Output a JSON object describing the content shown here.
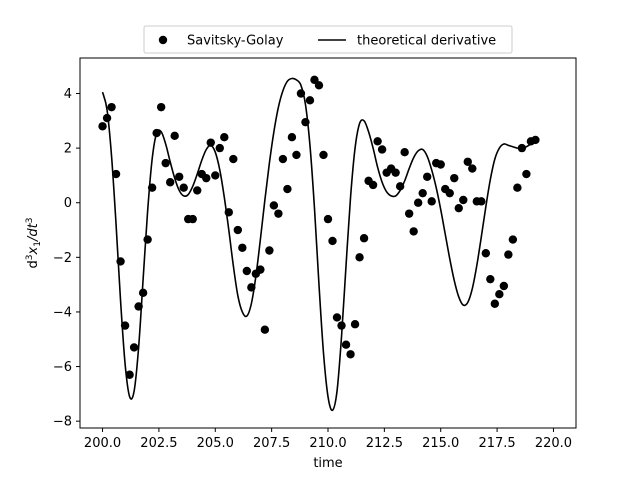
{
  "chart_data": {
    "type": "scatter",
    "title": "",
    "xlabel": "time",
    "ylabel_parts": {
      "base": "d",
      "sup1": "3",
      "mid": "x",
      "sub": "1",
      "slash": "/dt",
      "sup2": "3"
    },
    "xlim": [
      199.0,
      221.0
    ],
    "ylim": [
      -8.25,
      5.3
    ],
    "xticks": [
      200.0,
      202.5,
      205.0,
      207.5,
      210.0,
      212.5,
      215.0,
      217.5,
      220.0
    ],
    "xtick_labels": [
      "200.0",
      "202.5",
      "205.0",
      "207.5",
      "210.0",
      "212.5",
      "215.0",
      "217.5",
      "220.0"
    ],
    "yticks": [
      -8,
      -6,
      -4,
      -2,
      0,
      2,
      4
    ],
    "ytick_labels": [
      "−8",
      "−6",
      "−4",
      "−2",
      "0",
      "2",
      "4"
    ],
    "grid": false,
    "legend": {
      "placement": "top-center",
      "columns": 2
    },
    "series": [
      {
        "name": "Savitsky-Golay",
        "kind": "scatter",
        "color": "#000000",
        "points": [
          [
            200.0,
            2.8
          ],
          [
            200.2,
            3.1
          ],
          [
            200.4,
            3.5
          ],
          [
            200.6,
            1.05
          ],
          [
            200.8,
            -2.15
          ],
          [
            201.0,
            -4.5
          ],
          [
            201.2,
            -6.3
          ],
          [
            201.4,
            -5.3
          ],
          [
            201.6,
            -3.8
          ],
          [
            201.8,
            -3.3
          ],
          [
            202.0,
            -1.35
          ],
          [
            202.2,
            0.55
          ],
          [
            202.4,
            2.55
          ],
          [
            202.6,
            3.5
          ],
          [
            202.8,
            1.45
          ],
          [
            203.0,
            0.75
          ],
          [
            203.2,
            2.45
          ],
          [
            203.4,
            0.95
          ],
          [
            203.6,
            0.55
          ],
          [
            203.8,
            -0.6
          ],
          [
            204.0,
            -0.6
          ],
          [
            204.2,
            0.45
          ],
          [
            204.4,
            1.05
          ],
          [
            204.6,
            0.9
          ],
          [
            204.8,
            2.2
          ],
          [
            205.0,
            1.0
          ],
          [
            205.2,
            2.0
          ],
          [
            205.4,
            2.4
          ],
          [
            205.6,
            -0.35
          ],
          [
            205.8,
            1.6
          ],
          [
            206.0,
            -1.0
          ],
          [
            206.2,
            -1.65
          ],
          [
            206.4,
            -2.5
          ],
          [
            206.6,
            -3.1
          ],
          [
            206.8,
            -2.6
          ],
          [
            207.0,
            -2.45
          ],
          [
            207.2,
            -4.65
          ],
          [
            207.4,
            -1.75
          ],
          [
            207.6,
            -0.1
          ],
          [
            207.8,
            -0.4
          ],
          [
            208.0,
            1.6
          ],
          [
            208.2,
            0.5
          ],
          [
            208.4,
            2.4
          ],
          [
            208.6,
            1.75
          ],
          [
            208.8,
            4.0
          ],
          [
            209.0,
            2.95
          ],
          [
            209.2,
            3.75
          ],
          [
            209.4,
            4.5
          ],
          [
            209.6,
            4.3
          ],
          [
            209.8,
            1.75
          ],
          [
            210.0,
            -0.6
          ],
          [
            210.2,
            -1.4
          ],
          [
            210.4,
            -4.2
          ],
          [
            210.6,
            -4.5
          ],
          [
            210.8,
            -5.2
          ],
          [
            211.0,
            -5.55
          ],
          [
            211.2,
            -4.45
          ],
          [
            211.4,
            -2.0
          ],
          [
            211.6,
            -1.3
          ],
          [
            211.8,
            0.8
          ],
          [
            212.0,
            0.65
          ],
          [
            212.2,
            2.25
          ],
          [
            212.4,
            1.95
          ],
          [
            212.6,
            1.1
          ],
          [
            212.8,
            1.25
          ],
          [
            213.0,
            1.1
          ],
          [
            213.2,
            0.6
          ],
          [
            213.4,
            1.85
          ],
          [
            213.6,
            -0.4
          ],
          [
            213.8,
            -1.05
          ],
          [
            214.0,
            0.0
          ],
          [
            214.2,
            0.35
          ],
          [
            214.4,
            0.95
          ],
          [
            214.6,
            0.05
          ],
          [
            214.8,
            1.45
          ],
          [
            215.0,
            1.4
          ],
          [
            215.2,
            0.5
          ],
          [
            215.4,
            0.35
          ],
          [
            215.6,
            0.9
          ],
          [
            215.8,
            -0.2
          ],
          [
            216.0,
            0.1
          ],
          [
            216.2,
            1.5
          ],
          [
            216.4,
            1.25
          ],
          [
            216.6,
            0.05
          ],
          [
            216.8,
            0.05
          ],
          [
            217.0,
            -1.85
          ],
          [
            217.2,
            -2.8
          ],
          [
            217.4,
            -3.7
          ],
          [
            217.6,
            -3.35
          ],
          [
            217.8,
            -3.05
          ],
          [
            218.0,
            -1.9
          ],
          [
            218.2,
            -1.35
          ],
          [
            218.4,
            0.55
          ],
          [
            218.6,
            2.0
          ],
          [
            218.8,
            1.05
          ],
          [
            219.0,
            2.25
          ],
          [
            219.2,
            2.3
          ]
        ]
      },
      {
        "name": "theoretical derivative",
        "kind": "line",
        "color": "#000000",
        "points": [
          [
            200.0,
            4.05
          ],
          [
            200.2,
            3.4
          ],
          [
            200.4,
            1.7
          ],
          [
            200.6,
            -0.8
          ],
          [
            200.8,
            -3.6
          ],
          [
            201.0,
            -5.9
          ],
          [
            201.2,
            -7.1
          ],
          [
            201.4,
            -6.9
          ],
          [
            201.6,
            -5.3
          ],
          [
            201.8,
            -2.8
          ],
          [
            202.0,
            -0.3
          ],
          [
            202.2,
            1.6
          ],
          [
            202.4,
            2.55
          ],
          [
            202.6,
            2.6
          ],
          [
            202.8,
            2.15
          ],
          [
            203.0,
            1.5
          ],
          [
            203.2,
            0.9
          ],
          [
            203.4,
            0.45
          ],
          [
            203.6,
            0.25
          ],
          [
            203.8,
            0.3
          ],
          [
            204.0,
            0.6
          ],
          [
            204.2,
            1.05
          ],
          [
            204.4,
            1.55
          ],
          [
            204.6,
            1.95
          ],
          [
            204.8,
            2.1
          ],
          [
            205.0,
            1.85
          ],
          [
            205.2,
            1.2
          ],
          [
            205.4,
            0.2
          ],
          [
            205.6,
            -1.0
          ],
          [
            205.8,
            -2.3
          ],
          [
            206.0,
            -3.4
          ],
          [
            206.2,
            -4.0
          ],
          [
            206.4,
            -4.15
          ],
          [
            206.6,
            -3.7
          ],
          [
            206.8,
            -2.7
          ],
          [
            207.0,
            -1.35
          ],
          [
            207.2,
            0.1
          ],
          [
            207.4,
            1.45
          ],
          [
            207.6,
            2.6
          ],
          [
            207.8,
            3.5
          ],
          [
            208.0,
            4.1
          ],
          [
            208.2,
            4.45
          ],
          [
            208.4,
            4.55
          ],
          [
            208.6,
            4.5
          ],
          [
            208.8,
            4.3
          ],
          [
            209.0,
            3.6
          ],
          [
            209.2,
            2.1
          ],
          [
            209.4,
            -0.2
          ],
          [
            209.6,
            -3.0
          ],
          [
            209.8,
            -5.5
          ],
          [
            210.0,
            -7.1
          ],
          [
            210.2,
            -7.6
          ],
          [
            210.4,
            -6.9
          ],
          [
            210.6,
            -4.9
          ],
          [
            210.8,
            -2.3
          ],
          [
            211.0,
            0.2
          ],
          [
            211.2,
            2.0
          ],
          [
            211.4,
            2.9
          ],
          [
            211.6,
            3.0
          ],
          [
            211.8,
            2.6
          ],
          [
            212.0,
            2.0
          ],
          [
            212.2,
            1.3
          ],
          [
            212.4,
            0.75
          ],
          [
            212.6,
            0.4
          ],
          [
            212.8,
            0.25
          ],
          [
            213.0,
            0.25
          ],
          [
            213.2,
            0.45
          ],
          [
            213.4,
            0.8
          ],
          [
            213.6,
            1.25
          ],
          [
            213.8,
            1.65
          ],
          [
            214.0,
            1.9
          ],
          [
            214.2,
            1.95
          ],
          [
            214.4,
            1.7
          ],
          [
            214.6,
            1.2
          ],
          [
            214.8,
            0.55
          ],
          [
            215.0,
            -0.25
          ],
          [
            215.2,
            -1.15
          ],
          [
            215.4,
            -2.05
          ],
          [
            215.6,
            -2.85
          ],
          [
            215.8,
            -3.45
          ],
          [
            216.0,
            -3.75
          ],
          [
            216.2,
            -3.65
          ],
          [
            216.4,
            -3.15
          ],
          [
            216.6,
            -2.3
          ],
          [
            216.8,
            -1.25
          ],
          [
            217.0,
            -0.15
          ],
          [
            217.2,
            0.85
          ],
          [
            217.4,
            1.6
          ],
          [
            217.6,
            2.0
          ],
          [
            217.8,
            2.15
          ],
          [
            218.0,
            2.1
          ],
          [
            218.2,
            2.05
          ],
          [
            218.4,
            2.0
          ],
          [
            218.6,
            2.0
          ],
          [
            218.8,
            2.05
          ],
          [
            219.0,
            2.15
          ],
          [
            219.2,
            2.25
          ]
        ]
      }
    ]
  }
}
